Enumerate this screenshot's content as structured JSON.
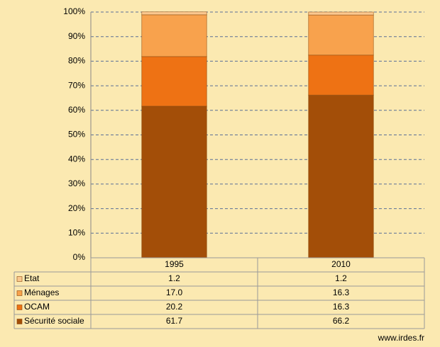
{
  "chart_data": {
    "type": "stacked_bar_100",
    "categories": [
      "1995",
      "2010"
    ],
    "series": [
      {
        "name": "Sécurité sociale",
        "color": "#a34e08",
        "values": [
          61.7,
          66.2
        ]
      },
      {
        "name": "OCAM",
        "color": "#ee7214",
        "values": [
          20.2,
          16.3
        ]
      },
      {
        "name": "Ménages",
        "color": "#f8a24d",
        "values": [
          17.0,
          16.3
        ],
        "value_labels": [
          "17.0",
          "16.3"
        ]
      },
      {
        "name": "Etat",
        "color": "#fbc88f",
        "values": [
          1.2,
          1.2
        ]
      }
    ],
    "ylim": [
      0,
      100
    ],
    "yticks": [
      {
        "value": 0,
        "label": "0%"
      },
      {
        "value": 10,
        "label": "10%"
      },
      {
        "value": 20,
        "label": "20%"
      },
      {
        "value": 30,
        "label": "30%"
      },
      {
        "value": 40,
        "label": "40%"
      },
      {
        "value": 50,
        "label": "50%"
      },
      {
        "value": 60,
        "label": "60%"
      },
      {
        "value": 70,
        "label": "70%"
      },
      {
        "value": 80,
        "label": "80%"
      },
      {
        "value": 90,
        "label": "90%"
      },
      {
        "value": 100,
        "label": "100%"
      }
    ],
    "grid": true,
    "source": "www.irdes.fr"
  }
}
